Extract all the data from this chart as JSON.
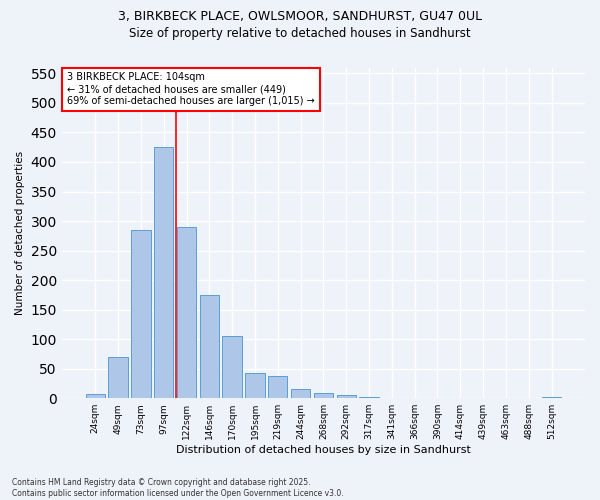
{
  "title_line1": "3, BIRKBECK PLACE, OWLSMOOR, SANDHURST, GU47 0UL",
  "title_line2": "Size of property relative to detached houses in Sandhurst",
  "xlabel": "Distribution of detached houses by size in Sandhurst",
  "ylabel": "Number of detached properties",
  "categories": [
    "24sqm",
    "49sqm",
    "73sqm",
    "97sqm",
    "122sqm",
    "146sqm",
    "170sqm",
    "195sqm",
    "219sqm",
    "244sqm",
    "268sqm",
    "292sqm",
    "317sqm",
    "341sqm",
    "366sqm",
    "390sqm",
    "414sqm",
    "439sqm",
    "463sqm",
    "488sqm",
    "512sqm"
  ],
  "values": [
    7,
    70,
    285,
    425,
    290,
    175,
    105,
    42,
    38,
    15,
    8,
    5,
    2,
    0,
    0,
    1,
    0,
    0,
    0,
    0,
    2
  ],
  "bar_color": "#aec6e8",
  "bar_edge_color": "#5a9fd4",
  "annotation_line1": "3 BIRKBECK PLACE: 104sqm",
  "annotation_line2": "← 31% of detached houses are smaller (449)",
  "annotation_line3": "69% of semi-detached houses are larger (1,015) →",
  "vline_x": 3.55,
  "vline_color": "red",
  "background_color": "#eef2f9",
  "grid_color": "#ffffff",
  "ylim": [
    0,
    560
  ],
  "yticks": [
    0,
    50,
    100,
    150,
    200,
    250,
    300,
    350,
    400,
    450,
    500,
    550
  ],
  "footer_line1": "Contains HM Land Registry data © Crown copyright and database right 2025.",
  "footer_line2": "Contains public sector information licensed under the Open Government Licence v3.0."
}
